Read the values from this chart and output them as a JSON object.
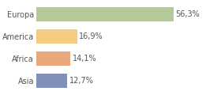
{
  "categories": [
    "Europa",
    "America",
    "Africa",
    "Asia"
  ],
  "values": [
    56.3,
    16.9,
    14.1,
    12.7
  ],
  "labels": [
    "56,3%",
    "16,9%",
    "14,1%",
    "12,7%"
  ],
  "bar_colors": [
    "#b5c99a",
    "#f5cc7f",
    "#e8a87c",
    "#8090bb"
  ],
  "background_color": "#ffffff",
  "plot_bg_color": "#ffffff",
  "xlim": [
    0,
    75
  ],
  "bar_height": 0.65,
  "label_fontsize": 7.0,
  "tick_fontsize": 7.0,
  "grid_color": "#dddddd",
  "text_color": "#555555"
}
